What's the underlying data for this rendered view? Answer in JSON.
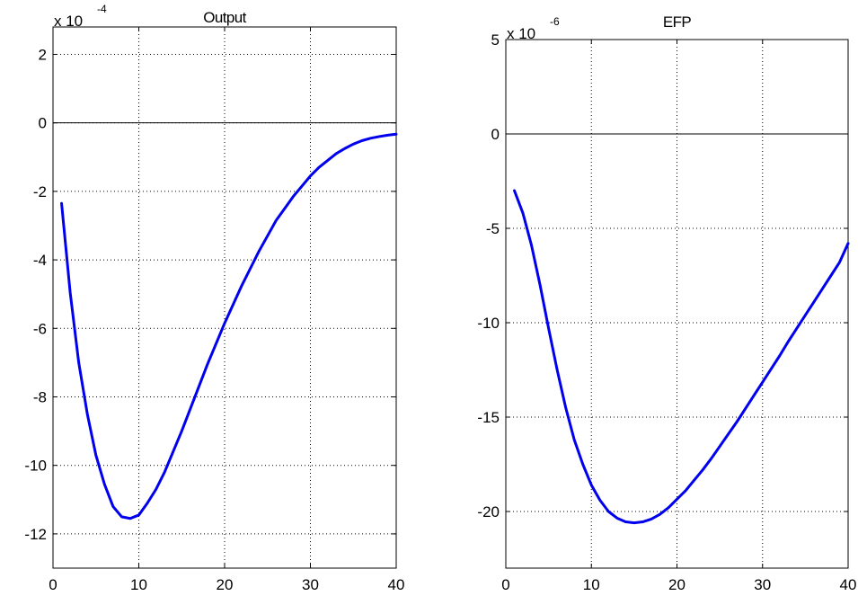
{
  "colors": {
    "line": "#0000ee",
    "axes": "#000000",
    "grid": "#000000",
    "background": "#ffffff"
  },
  "chart_data": [
    {
      "type": "line",
      "title": "Output",
      "scale_label": "x 10",
      "scale_exponent": "-4",
      "xlim": [
        0,
        40
      ],
      "ylim": [
        -13,
        2.8
      ],
      "xticks": [
        0,
        10,
        20,
        30,
        40
      ],
      "yticks": [
        2,
        0,
        -2,
        -4,
        -6,
        -8,
        -10,
        -12
      ],
      "grid": true,
      "zero_line": true,
      "series": [
        {
          "x": [
            1,
            2,
            3,
            4,
            5,
            6,
            7,
            8,
            9,
            10,
            11,
            12,
            13,
            14,
            15,
            16,
            17,
            18,
            19,
            20,
            21,
            22,
            23,
            24,
            25,
            26,
            27,
            28,
            29,
            30,
            31,
            32,
            33,
            34,
            35,
            36,
            37,
            38,
            39,
            40
          ],
          "values": [
            -2.35,
            -4.95,
            -7.0,
            -8.5,
            -9.7,
            -10.55,
            -11.2,
            -11.5,
            -11.55,
            -11.45,
            -11.1,
            -10.7,
            -10.2,
            -9.6,
            -9.0,
            -8.35,
            -7.7,
            -7.05,
            -6.45,
            -5.85,
            -5.3,
            -4.75,
            -4.25,
            -3.75,
            -3.3,
            -2.85,
            -2.5,
            -2.15,
            -1.85,
            -1.55,
            -1.3,
            -1.1,
            -0.9,
            -0.75,
            -0.62,
            -0.52,
            -0.45,
            -0.4,
            -0.36,
            -0.33
          ]
        }
      ]
    },
    {
      "type": "line",
      "title": "EFP",
      "scale_label": "x 10",
      "scale_exponent": "-6",
      "xlim": [
        0,
        40
      ],
      "ylim": [
        -23,
        5
      ],
      "xticks": [
        0,
        10,
        20,
        30,
        40
      ],
      "yticks": [
        5,
        0,
        -5,
        -10,
        -15,
        -20
      ],
      "grid": true,
      "zero_line": true,
      "series": [
        {
          "x": [
            1,
            2,
            3,
            4,
            5,
            6,
            7,
            8,
            9,
            10,
            11,
            12,
            13,
            14,
            15,
            16,
            17,
            18,
            19,
            20,
            21,
            22,
            23,
            24,
            25,
            26,
            27,
            28,
            29,
            30,
            31,
            32,
            33,
            34,
            35,
            36,
            37,
            38,
            39,
            40
          ],
          "values": [
            -3.0,
            -4.2,
            -5.9,
            -8.0,
            -10.3,
            -12.5,
            -14.5,
            -16.2,
            -17.5,
            -18.6,
            -19.4,
            -20.0,
            -20.35,
            -20.55,
            -20.6,
            -20.55,
            -20.4,
            -20.15,
            -19.8,
            -19.35,
            -18.9,
            -18.35,
            -17.8,
            -17.2,
            -16.55,
            -15.9,
            -15.25,
            -14.55,
            -13.85,
            -13.15,
            -12.45,
            -11.75,
            -11.0,
            -10.3,
            -9.6,
            -8.9,
            -8.2,
            -7.5,
            -6.8,
            -5.8
          ]
        }
      ]
    }
  ]
}
